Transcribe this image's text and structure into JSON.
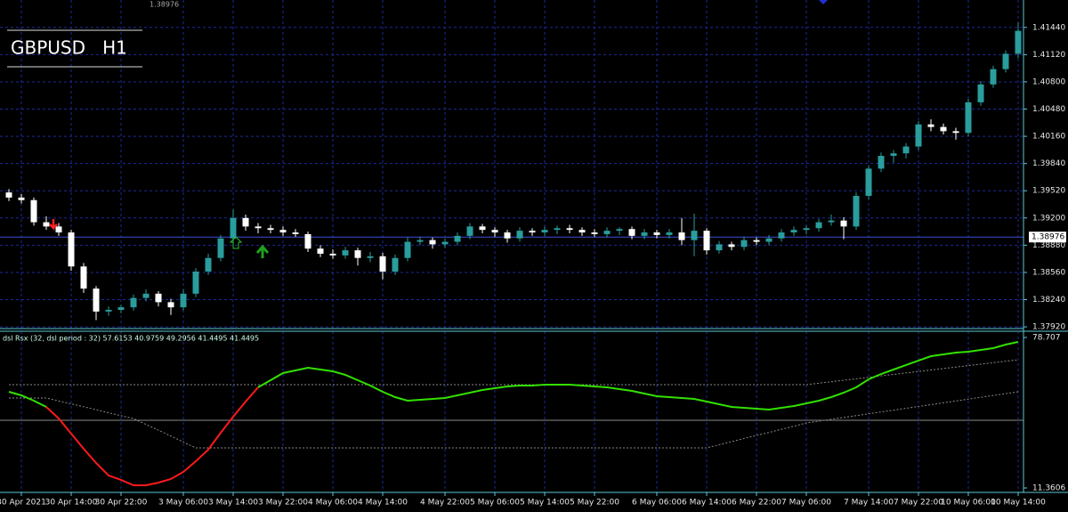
{
  "chart_data": [
    {
      "type": "candlestick",
      "title": "GBPUSD   H1",
      "x": [
        null,
        "30 Apr 2021",
        null,
        null,
        null,
        "30 Apr 14:00",
        null,
        null,
        null,
        "30 Apr 22:00",
        null,
        null,
        null,
        null,
        "3 May 06:00",
        null,
        null,
        null,
        "3 May 14:00",
        null,
        null,
        null,
        "3 May 22:00",
        null,
        null,
        null,
        "4 May 06:00",
        null,
        null,
        null,
        "4 May 14:00",
        null,
        null,
        null,
        null,
        "4 May 22:00",
        null,
        null,
        null,
        "5 May 06:00",
        null,
        null,
        null,
        "5 May 14:00",
        null,
        null,
        null,
        "5 May 22:00",
        null,
        null,
        null,
        null,
        "6 May 06:00",
        null,
        null,
        null,
        "6 May 14:00",
        null,
        null,
        null,
        "6 May 22:00",
        null,
        null,
        null,
        "7 May 06:00",
        null,
        null,
        null,
        null,
        "7 May 14:00",
        null,
        null,
        null,
        "7 May 22:00",
        null,
        null,
        null,
        "10 May 06:00",
        null,
        null,
        null,
        "10 May 14:00"
      ],
      "ohlc": [
        [
          1.395,
          1.3954,
          1.394,
          1.3944
        ],
        [
          1.3944,
          1.3948,
          1.3937,
          1.3941
        ],
        [
          1.3941,
          1.3944,
          1.3911,
          1.3915
        ],
        [
          1.3915,
          1.3922,
          1.3906,
          1.391
        ],
        [
          1.391,
          1.3914,
          1.3899,
          1.3903
        ],
        [
          1.3903,
          1.3906,
          1.3858,
          1.3863
        ],
        [
          1.3863,
          1.3867,
          1.3832,
          1.3837
        ],
        [
          1.3837,
          1.384,
          1.38,
          1.381
        ],
        [
          1.381,
          1.3816,
          1.3805,
          1.3812
        ],
        [
          1.3812,
          1.3818,
          1.3808,
          1.3815
        ],
        [
          1.3815,
          1.383,
          1.3811,
          1.3826
        ],
        [
          1.3826,
          1.3836,
          1.3822,
          1.3831
        ],
        [
          1.3831,
          1.3834,
          1.3816,
          1.3821
        ],
        [
          1.3821,
          1.3825,
          1.3806,
          1.3815
        ],
        [
          1.3815,
          1.3836,
          1.3811,
          1.3831
        ],
        [
          1.3831,
          1.3861,
          1.3827,
          1.3857
        ],
        [
          1.3857,
          1.3878,
          1.3853,
          1.3873
        ],
        [
          1.3873,
          1.39,
          1.3869,
          1.3896
        ],
        [
          1.3896,
          1.393,
          1.3892,
          1.392
        ],
        [
          1.392,
          1.3924,
          1.3905,
          1.391
        ],
        [
          1.391,
          1.3914,
          1.3902,
          1.3908
        ],
        [
          1.3908,
          1.3912,
          1.3902,
          1.3906
        ],
        [
          1.3906,
          1.391,
          1.3899,
          1.3903
        ],
        [
          1.3903,
          1.3907,
          1.3898,
          1.3901
        ],
        [
          1.3901,
          1.3904,
          1.388,
          1.3884
        ],
        [
          1.3884,
          1.3888,
          1.3874,
          1.3878
        ],
        [
          1.3878,
          1.3883,
          1.3872,
          1.3876
        ],
        [
          1.3876,
          1.3886,
          1.3872,
          1.3882
        ],
        [
          1.3882,
          1.3885,
          1.3864,
          1.3873
        ],
        [
          1.3873,
          1.388,
          1.3868,
          1.3875
        ],
        [
          1.3875,
          1.3879,
          1.3848,
          1.3857
        ],
        [
          1.3857,
          1.3877,
          1.3853,
          1.3873
        ],
        [
          1.3873,
          1.3897,
          1.3869,
          1.3892
        ],
        [
          1.3892,
          1.3898,
          1.3888,
          1.3894
        ],
        [
          1.3894,
          1.3897,
          1.3884,
          1.3889
        ],
        [
          1.3889,
          1.3896,
          1.3885,
          1.3892
        ],
        [
          1.3892,
          1.3903,
          1.3888,
          1.3899
        ],
        [
          1.3899,
          1.3914,
          1.3895,
          1.391
        ],
        [
          1.391,
          1.3913,
          1.3902,
          1.3906
        ],
        [
          1.3906,
          1.3909,
          1.3898,
          1.3903
        ],
        [
          1.3903,
          1.3906,
          1.3891,
          1.3896
        ],
        [
          1.3896,
          1.3909,
          1.3892,
          1.3905
        ],
        [
          1.3905,
          1.3908,
          1.3899,
          1.3903
        ],
        [
          1.3903,
          1.391,
          1.3899,
          1.3906
        ],
        [
          1.3906,
          1.3911,
          1.3901,
          1.3908
        ],
        [
          1.3908,
          1.3912,
          1.3902,
          1.3906
        ],
        [
          1.3906,
          1.3909,
          1.3899,
          1.3903
        ],
        [
          1.3903,
          1.3907,
          1.3898,
          1.3901
        ],
        [
          1.3901,
          1.3909,
          1.3897,
          1.3905
        ],
        [
          1.3905,
          1.3909,
          1.39,
          1.3907
        ],
        [
          1.3907,
          1.391,
          1.3895,
          1.3899
        ],
        [
          1.3899,
          1.3907,
          1.3895,
          1.3903
        ],
        [
          1.3903,
          1.3906,
          1.3896,
          1.39
        ],
        [
          1.39,
          1.3907,
          1.3896,
          1.3903
        ],
        [
          1.3903,
          1.392,
          1.3888,
          1.3894
        ],
        [
          1.3894,
          1.3925,
          1.3875,
          1.3905
        ],
        [
          1.3905,
          1.3908,
          1.3877,
          1.3882
        ],
        [
          1.3882,
          1.3893,
          1.3878,
          1.3889
        ],
        [
          1.3889,
          1.3892,
          1.3882,
          1.3886
        ],
        [
          1.3886,
          1.3898,
          1.3882,
          1.3894
        ],
        [
          1.3894,
          1.3897,
          1.3888,
          1.3892
        ],
        [
          1.3892,
          1.39,
          1.3888,
          1.3896
        ],
        [
          1.3896,
          1.3907,
          1.3892,
          1.3903
        ],
        [
          1.3903,
          1.391,
          1.3899,
          1.3906
        ],
        [
          1.3906,
          1.3911,
          1.3901,
          1.3908
        ],
        [
          1.3908,
          1.3919,
          1.3904,
          1.3915
        ],
        [
          1.3915,
          1.3924,
          1.3911,
          1.3917
        ],
        [
          1.3917,
          1.3921,
          1.3895,
          1.391
        ],
        [
          1.391,
          1.395,
          1.3906,
          1.3946
        ],
        [
          1.3946,
          1.3982,
          1.3942,
          1.3978
        ],
        [
          1.3978,
          1.3997,
          1.3974,
          1.3993
        ],
        [
          1.3993,
          1.4,
          1.3985,
          1.3996
        ],
        [
          1.3996,
          1.4008,
          1.399,
          1.4004
        ],
        [
          1.4004,
          1.4034,
          1.4,
          1.403
        ],
        [
          1.403,
          1.4036,
          1.4022,
          1.4027
        ],
        [
          1.4027,
          1.4031,
          1.4018,
          1.4022
        ],
        [
          1.4022,
          1.4026,
          1.4012,
          1.402
        ],
        [
          1.402,
          1.406,
          1.4016,
          1.4056
        ],
        [
          1.4056,
          1.4081,
          1.4052,
          1.4077
        ],
        [
          1.4077,
          1.4099,
          1.4073,
          1.4095
        ],
        [
          1.4095,
          1.4117,
          1.4091,
          1.4113
        ],
        [
          1.4113,
          1.415,
          1.4108,
          1.414
        ]
      ],
      "up_color": "#2a9d9d",
      "down_color": "#ffffff",
      "ylim": [
        1.379,
        1.4171
      ],
      "yticks": [
        {
          "value": 1.3792,
          "label": "1.37920"
        },
        {
          "value": 1.3824,
          "label": "1.38240"
        },
        {
          "value": 1.3856,
          "label": "1.38560"
        },
        {
          "value": 1.3888,
          "label": "1.38880"
        },
        {
          "value": 1.392,
          "label": "1.39200"
        },
        {
          "value": 1.3952,
          "label": "1.39520"
        },
        {
          "value": 1.3984,
          "label": "1.39840"
        },
        {
          "value": 1.4016,
          "label": "1.40160"
        },
        {
          "value": 1.4048,
          "label": "1.40480"
        },
        {
          "value": 1.408,
          "label": "1.40800"
        },
        {
          "value": 1.4112,
          "label": "1.41120"
        },
        {
          "value": 1.4144,
          "label": "1.41440"
        }
      ],
      "current_price": {
        "value": 1.38976,
        "label": "1.38976"
      },
      "grid": true
    },
    {
      "type": "line",
      "title": "dsl Rsx (32, dsl period : 32) 57.6153 40.9759 49.2956 41.4495 41.4495",
      "ylim": [
        11.3606,
        78.707
      ],
      "yticks": [
        11.3606,
        78.707
      ],
      "level": 41.65,
      "level_color": "#8a8a8a",
      "band_color": "#8a8a8a",
      "series": [
        {
          "color": "#33e000",
          "values": [
            54.4,
            52.81,
            50.42,
            47.63,
            null,
            null,
            null,
            null,
            null,
            null,
            null,
            null,
            null,
            null,
            null,
            null,
            null,
            null,
            null,
            null,
            56.39,
            59.58,
            62.77,
            63.97,
            65.16,
            64.36,
            63.57,
            61.97,
            59.58,
            57.19,
            54.4,
            52.01,
            50.42,
            50.81,
            51.21,
            51.61,
            52.81,
            54.0,
            55.2,
            56.0,
            56.79,
            57.19,
            57.19,
            57.59,
            57.59,
            57.59,
            57.19,
            56.79,
            56.39,
            55.6,
            54.8,
            53.6,
            52.41,
            52.01,
            51.61,
            51.21,
            50.02,
            48.82,
            47.63,
            47.23,
            46.83,
            46.43,
            47.23,
            48.03,
            49.22,
            50.42,
            52.01,
            54.0,
            56.39,
            59.98,
            62.37,
            64.36,
            66.36,
            68.35,
            70.34,
            71.14,
            71.94,
            72.33,
            73.13,
            73.93,
            75.52,
            76.72
          ]
        },
        {
          "color": "#ff1a1a",
          "values": [
            null,
            null,
            null,
            47.63,
            42.45,
            35.67,
            28.89,
            22.52,
            16.94,
            14.95,
            12.56,
            12.56,
            13.75,
            15.35,
            18.54,
            23.32,
            28.5,
            36.07,
            43.24,
            50.02,
            56.39,
            null,
            null,
            null,
            null,
            null,
            null,
            null,
            null,
            null,
            null,
            null,
            null,
            null,
            null,
            null,
            null,
            null,
            null,
            null,
            null,
            null,
            null,
            null,
            null,
            null,
            null,
            null,
            null,
            null,
            null,
            null,
            null,
            null,
            null,
            null,
            null,
            null,
            null,
            null,
            null,
            null,
            null,
            null,
            null,
            null,
            null,
            null,
            null,
            null,
            null,
            null,
            null,
            null,
            null,
            null,
            null,
            null,
            null,
            null,
            null,
            null
          ]
        }
      ],
      "bands": [
        {
          "values": [
            57.59,
            57.59,
            57.59,
            57.59,
            57.59,
            57.59,
            57.59,
            57.59,
            57.59,
            57.59,
            57.59,
            57.59,
            57.59,
            57.59,
            57.59,
            57.59,
            57.59,
            57.59,
            57.59,
            57.59,
            57.59,
            57.59,
            57.59,
            57.59,
            57.59,
            57.59,
            57.59,
            57.59,
            57.59,
            57.59,
            57.59,
            57.59,
            57.59,
            57.59,
            57.59,
            57.59,
            57.59,
            57.59,
            57.59,
            57.59,
            57.59,
            57.59,
            57.59,
            57.59,
            57.59,
            57.59,
            57.59,
            57.59,
            57.59,
            57.59,
            57.59,
            57.59,
            57.59,
            57.59,
            57.59,
            57.59,
            57.59,
            57.59,
            57.59,
            57.59,
            57.59,
            57.59,
            57.59,
            57.59,
            57.59,
            58.25,
            58.9,
            59.56,
            60.21,
            60.87,
            61.53,
            62.18,
            62.84,
            63.49,
            64.15,
            64.81,
            65.46,
            66.12,
            66.77,
            67.43,
            68.08,
            68.74
          ]
        },
        {
          "values": [
            51.61,
            51.61,
            51.61,
            51.61,
            50.3,
            49.0,
            47.7,
            46.4,
            45.0,
            43.7,
            42.45,
            39.8,
            37.2,
            34.6,
            31.9,
            29.3,
            29.3,
            29.3,
            29.3,
            29.3,
            29.3,
            29.3,
            29.3,
            29.3,
            29.3,
            29.3,
            29.3,
            29.3,
            29.3,
            29.3,
            29.3,
            29.3,
            29.3,
            29.3,
            29.3,
            29.3,
            29.3,
            29.3,
            29.3,
            29.3,
            29.3,
            29.3,
            29.3,
            29.3,
            29.3,
            29.3,
            29.3,
            29.3,
            29.3,
            29.3,
            29.3,
            29.3,
            29.3,
            29.3,
            29.3,
            29.3,
            29.3,
            30.7,
            32.1,
            33.5,
            34.9,
            36.2,
            37.6,
            39.0,
            40.45,
            41.27,
            42.09,
            42.91,
            43.73,
            44.55,
            45.37,
            46.19,
            47.01,
            47.83,
            48.65,
            49.47,
            50.29,
            51.11,
            51.93,
            52.75,
            53.57,
            54.4
          ]
        }
      ]
    }
  ]
}
